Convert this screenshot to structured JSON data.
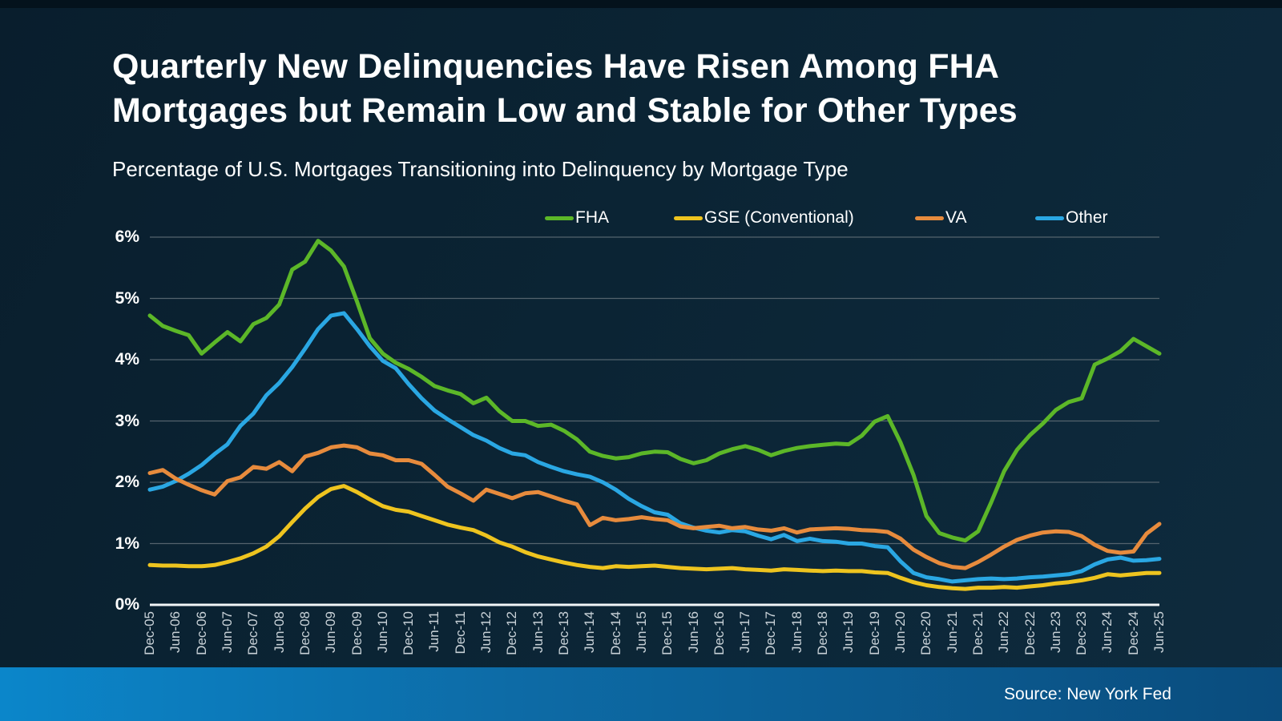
{
  "slide": {
    "title": "Quarterly New Delinquencies Have Risen Among FHA\nMortgages but Remain Low and Stable for Other Types",
    "subtitle": "Percentage of U.S. Mortgages Transitioning into Delinquency by Mortgage Type",
    "source": "Source: New York Fed"
  },
  "colors": {
    "fha": "#5cb728",
    "gse": "#eec41f",
    "va": "#e78b3d",
    "other": "#2aa7e3",
    "grid": "#54636d",
    "axis": "#f2f6f8",
    "tick_label": "#c9d2d8",
    "top_strip": "#04121c",
    "bar_left": "#0b86ca",
    "bar_right": "#0a4c7d"
  },
  "legend": {
    "position": "top",
    "items": [
      {
        "id": "fha",
        "label": "FHA"
      },
      {
        "id": "gse",
        "label": "GSE (Conventional)"
      },
      {
        "id": "va",
        "label": "VA"
      },
      {
        "id": "other",
        "label": "Other"
      }
    ]
  },
  "chart_data": {
    "type": "line",
    "title": "Quarterly New Delinquencies Have Risen Among FHA Mortgages but Remain Low and Stable for Other Types",
    "subtitle": "Percentage of U.S. Mortgages Transitioning into Delinquency by Mortgage Type",
    "xlabel": "",
    "ylabel": "",
    "frequency": "quarterly",
    "x_start": "Dec-05",
    "x_end": "Jun-25",
    "ylim": [
      0,
      6
    ],
    "grid": true,
    "y_tick_labels": [
      "0%",
      "1%",
      "2%",
      "3%",
      "4%",
      "5%",
      "6%"
    ],
    "x_tick_labels": [
      "Dec-05",
      "Jun-06",
      "Dec-06",
      "Jun-07",
      "Dec-07",
      "Jun-08",
      "Dec-08",
      "Jun-09",
      "Dec-09",
      "Jun-10",
      "Dec-10",
      "Jun-11",
      "Dec-11",
      "Jun-12",
      "Dec-12",
      "Jun-13",
      "Dec-13",
      "Jun-14",
      "Dec-14",
      "Jun-15",
      "Dec-15",
      "Jun-16",
      "Dec-16",
      "Jun-17",
      "Dec-17",
      "Jun-18",
      "Dec-18",
      "Jun-19",
      "Dec-19",
      "Jun-20",
      "Dec-20",
      "Jun-21",
      "Dec-21",
      "Jun-22",
      "Dec-22",
      "Jun-23",
      "Dec-23",
      "Jun-24",
      "Dec-24",
      "Jun-25"
    ],
    "series": [
      {
        "id": "fha",
        "name": "FHA",
        "values": [
          4.72,
          4.55,
          4.47,
          4.4,
          4.1,
          4.28,
          4.45,
          4.3,
          4.58,
          4.68,
          4.9,
          5.47,
          5.6,
          5.94,
          5.78,
          5.52,
          4.95,
          4.35,
          4.1,
          3.95,
          3.85,
          3.72,
          3.57,
          3.5,
          3.44,
          3.29,
          3.38,
          3.16,
          3.0,
          3.0,
          2.92,
          2.94,
          2.84,
          2.7,
          2.5,
          2.43,
          2.39,
          2.41,
          2.47,
          2.5,
          2.49,
          2.38,
          2.31,
          2.36,
          2.47,
          2.54,
          2.59,
          2.53,
          2.44,
          2.51,
          2.56,
          2.59,
          2.61,
          2.63,
          2.62,
          2.76,
          2.99,
          3.08,
          2.65,
          2.12,
          1.45,
          1.17,
          1.1,
          1.05,
          1.2,
          1.67,
          2.18,
          2.53,
          2.77,
          2.96,
          3.18,
          3.31,
          3.37,
          3.92,
          4.02,
          4.14,
          4.34,
          4.22,
          4.1
        ]
      },
      {
        "id": "gse",
        "name": "GSE (Conventional)",
        "values": [
          0.65,
          0.64,
          0.64,
          0.63,
          0.63,
          0.65,
          0.7,
          0.76,
          0.84,
          0.95,
          1.12,
          1.35,
          1.57,
          1.76,
          1.89,
          1.94,
          1.84,
          1.72,
          1.61,
          1.55,
          1.52,
          1.45,
          1.38,
          1.31,
          1.26,
          1.22,
          1.13,
          1.02,
          0.95,
          0.86,
          0.79,
          0.74,
          0.69,
          0.65,
          0.62,
          0.6,
          0.63,
          0.62,
          0.63,
          0.64,
          0.62,
          0.6,
          0.59,
          0.58,
          0.59,
          0.6,
          0.58,
          0.57,
          0.56,
          0.58,
          0.57,
          0.56,
          0.55,
          0.56,
          0.55,
          0.55,
          0.53,
          0.52,
          0.44,
          0.37,
          0.32,
          0.29,
          0.27,
          0.26,
          0.28,
          0.28,
          0.29,
          0.28,
          0.3,
          0.32,
          0.35,
          0.37,
          0.4,
          0.44,
          0.5,
          0.48,
          0.5,
          0.52,
          0.52
        ]
      },
      {
        "id": "va",
        "name": "VA",
        "values": [
          2.15,
          2.2,
          2.06,
          1.96,
          1.87,
          1.8,
          2.02,
          2.08,
          2.25,
          2.22,
          2.33,
          2.18,
          2.42,
          2.48,
          2.57,
          2.6,
          2.57,
          2.47,
          2.44,
          2.36,
          2.36,
          2.3,
          2.12,
          1.93,
          1.82,
          1.7,
          1.88,
          1.81,
          1.74,
          1.82,
          1.84,
          1.77,
          1.7,
          1.64,
          1.3,
          1.42,
          1.38,
          1.4,
          1.43,
          1.4,
          1.38,
          1.28,
          1.25,
          1.27,
          1.29,
          1.25,
          1.27,
          1.23,
          1.21,
          1.25,
          1.18,
          1.23,
          1.24,
          1.25,
          1.24,
          1.22,
          1.21,
          1.19,
          1.08,
          0.9,
          0.78,
          0.68,
          0.62,
          0.6,
          0.7,
          0.82,
          0.95,
          1.06,
          1.13,
          1.18,
          1.2,
          1.19,
          1.12,
          0.98,
          0.88,
          0.85,
          0.87,
          1.16,
          1.32
        ]
      },
      {
        "id": "other",
        "name": "Other",
        "values": [
          1.88,
          1.93,
          2.02,
          2.14,
          2.28,
          2.46,
          2.62,
          2.92,
          3.12,
          3.42,
          3.62,
          3.88,
          4.18,
          4.5,
          4.72,
          4.76,
          4.5,
          4.22,
          3.98,
          3.86,
          3.6,
          3.37,
          3.17,
          3.03,
          2.9,
          2.77,
          2.68,
          2.56,
          2.47,
          2.44,
          2.33,
          2.25,
          2.18,
          2.13,
          2.09,
          2.0,
          1.88,
          1.73,
          1.61,
          1.51,
          1.47,
          1.33,
          1.26,
          1.21,
          1.18,
          1.22,
          1.2,
          1.13,
          1.07,
          1.14,
          1.04,
          1.08,
          1.04,
          1.03,
          1.0,
          1.0,
          0.96,
          0.94,
          0.71,
          0.52,
          0.45,
          0.42,
          0.38,
          0.4,
          0.42,
          0.43,
          0.42,
          0.43,
          0.45,
          0.46,
          0.48,
          0.5,
          0.55,
          0.66,
          0.74,
          0.77,
          0.72,
          0.73,
          0.75
        ]
      }
    ]
  }
}
